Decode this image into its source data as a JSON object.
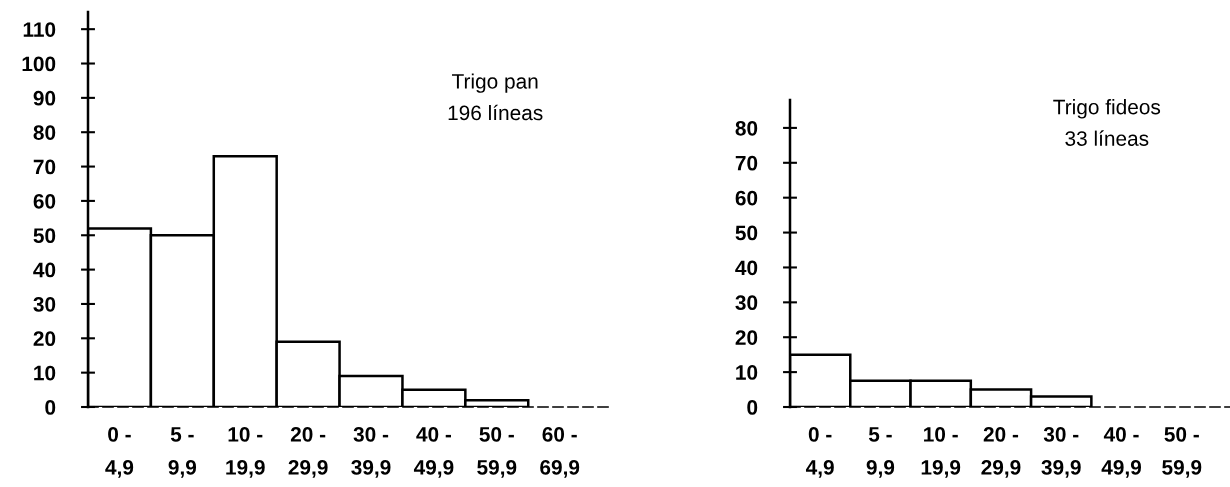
{
  "chart_data": [
    {
      "type": "bar",
      "categories": [
        "0 -\n4,9",
        "5 -\n9,9",
        "10 -\n19,9",
        "20 -\n29,9",
        "30 -\n39,9",
        "40 -\n49,9",
        "50 -\n59,9",
        "60 -\n69,9"
      ],
      "values": [
        52,
        50,
        73,
        19,
        9,
        5,
        2,
        0
      ],
      "color": "#ffffff",
      "ylim": [
        0,
        115
      ],
      "yticks": [
        0,
        10,
        20,
        30,
        40,
        50,
        60,
        70,
        80,
        90,
        100,
        110
      ],
      "grid": false,
      "annotations": [
        "Trigo pan\n196 líneas"
      ]
    },
    {
      "type": "bar",
      "categories": [
        "0 -\n4,9",
        "5 -\n9,9",
        "10 -\n19,9",
        "20 -\n29,9",
        "30 -\n39,9",
        "40 -\n49,9",
        "50 -\n59,9"
      ],
      "values": [
        15,
        7.5,
        7.5,
        5,
        3,
        0,
        0
      ],
      "color": "#ffffff",
      "ylim": [
        0,
        88
      ],
      "yticks": [
        0,
        10,
        20,
        30,
        40,
        50,
        60,
        70,
        80
      ],
      "grid": false,
      "annotations": [
        "Trigo fideos\n33 líneas"
      ]
    }
  ]
}
